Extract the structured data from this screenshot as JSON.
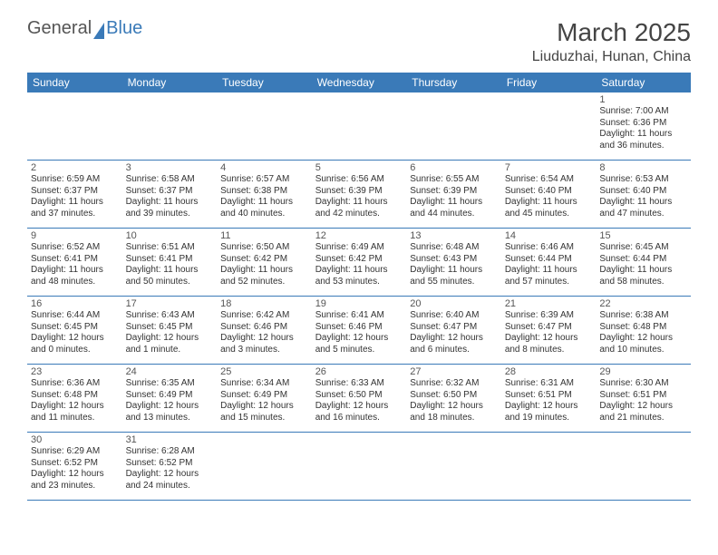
{
  "logo": {
    "general": "General",
    "blue": "Blue"
  },
  "title": {
    "month": "March 2025",
    "location": "Liuduzhai, Hunan, China"
  },
  "colors": {
    "header_bg": "#3a7ab8",
    "header_text": "#ffffff",
    "border": "#3a7ab8",
    "text": "#333333",
    "title_text": "#444444"
  },
  "day_headers": [
    "Sunday",
    "Monday",
    "Tuesday",
    "Wednesday",
    "Thursday",
    "Friday",
    "Saturday"
  ],
  "weeks": [
    [
      null,
      null,
      null,
      null,
      null,
      null,
      {
        "n": "1",
        "sr": "Sunrise: 7:00 AM",
        "ss": "Sunset: 6:36 PM",
        "dl1": "Daylight: 11 hours",
        "dl2": "and 36 minutes."
      }
    ],
    [
      {
        "n": "2",
        "sr": "Sunrise: 6:59 AM",
        "ss": "Sunset: 6:37 PM",
        "dl1": "Daylight: 11 hours",
        "dl2": "and 37 minutes."
      },
      {
        "n": "3",
        "sr": "Sunrise: 6:58 AM",
        "ss": "Sunset: 6:37 PM",
        "dl1": "Daylight: 11 hours",
        "dl2": "and 39 minutes."
      },
      {
        "n": "4",
        "sr": "Sunrise: 6:57 AM",
        "ss": "Sunset: 6:38 PM",
        "dl1": "Daylight: 11 hours",
        "dl2": "and 40 minutes."
      },
      {
        "n": "5",
        "sr": "Sunrise: 6:56 AM",
        "ss": "Sunset: 6:39 PM",
        "dl1": "Daylight: 11 hours",
        "dl2": "and 42 minutes."
      },
      {
        "n": "6",
        "sr": "Sunrise: 6:55 AM",
        "ss": "Sunset: 6:39 PM",
        "dl1": "Daylight: 11 hours",
        "dl2": "and 44 minutes."
      },
      {
        "n": "7",
        "sr": "Sunrise: 6:54 AM",
        "ss": "Sunset: 6:40 PM",
        "dl1": "Daylight: 11 hours",
        "dl2": "and 45 minutes."
      },
      {
        "n": "8",
        "sr": "Sunrise: 6:53 AM",
        "ss": "Sunset: 6:40 PM",
        "dl1": "Daylight: 11 hours",
        "dl2": "and 47 minutes."
      }
    ],
    [
      {
        "n": "9",
        "sr": "Sunrise: 6:52 AM",
        "ss": "Sunset: 6:41 PM",
        "dl1": "Daylight: 11 hours",
        "dl2": "and 48 minutes."
      },
      {
        "n": "10",
        "sr": "Sunrise: 6:51 AM",
        "ss": "Sunset: 6:41 PM",
        "dl1": "Daylight: 11 hours",
        "dl2": "and 50 minutes."
      },
      {
        "n": "11",
        "sr": "Sunrise: 6:50 AM",
        "ss": "Sunset: 6:42 PM",
        "dl1": "Daylight: 11 hours",
        "dl2": "and 52 minutes."
      },
      {
        "n": "12",
        "sr": "Sunrise: 6:49 AM",
        "ss": "Sunset: 6:42 PM",
        "dl1": "Daylight: 11 hours",
        "dl2": "and 53 minutes."
      },
      {
        "n": "13",
        "sr": "Sunrise: 6:48 AM",
        "ss": "Sunset: 6:43 PM",
        "dl1": "Daylight: 11 hours",
        "dl2": "and 55 minutes."
      },
      {
        "n": "14",
        "sr": "Sunrise: 6:46 AM",
        "ss": "Sunset: 6:44 PM",
        "dl1": "Daylight: 11 hours",
        "dl2": "and 57 minutes."
      },
      {
        "n": "15",
        "sr": "Sunrise: 6:45 AM",
        "ss": "Sunset: 6:44 PM",
        "dl1": "Daylight: 11 hours",
        "dl2": "and 58 minutes."
      }
    ],
    [
      {
        "n": "16",
        "sr": "Sunrise: 6:44 AM",
        "ss": "Sunset: 6:45 PM",
        "dl1": "Daylight: 12 hours",
        "dl2": "and 0 minutes."
      },
      {
        "n": "17",
        "sr": "Sunrise: 6:43 AM",
        "ss": "Sunset: 6:45 PM",
        "dl1": "Daylight: 12 hours",
        "dl2": "and 1 minute."
      },
      {
        "n": "18",
        "sr": "Sunrise: 6:42 AM",
        "ss": "Sunset: 6:46 PM",
        "dl1": "Daylight: 12 hours",
        "dl2": "and 3 minutes."
      },
      {
        "n": "19",
        "sr": "Sunrise: 6:41 AM",
        "ss": "Sunset: 6:46 PM",
        "dl1": "Daylight: 12 hours",
        "dl2": "and 5 minutes."
      },
      {
        "n": "20",
        "sr": "Sunrise: 6:40 AM",
        "ss": "Sunset: 6:47 PM",
        "dl1": "Daylight: 12 hours",
        "dl2": "and 6 minutes."
      },
      {
        "n": "21",
        "sr": "Sunrise: 6:39 AM",
        "ss": "Sunset: 6:47 PM",
        "dl1": "Daylight: 12 hours",
        "dl2": "and 8 minutes."
      },
      {
        "n": "22",
        "sr": "Sunrise: 6:38 AM",
        "ss": "Sunset: 6:48 PM",
        "dl1": "Daylight: 12 hours",
        "dl2": "and 10 minutes."
      }
    ],
    [
      {
        "n": "23",
        "sr": "Sunrise: 6:36 AM",
        "ss": "Sunset: 6:48 PM",
        "dl1": "Daylight: 12 hours",
        "dl2": "and 11 minutes."
      },
      {
        "n": "24",
        "sr": "Sunrise: 6:35 AM",
        "ss": "Sunset: 6:49 PM",
        "dl1": "Daylight: 12 hours",
        "dl2": "and 13 minutes."
      },
      {
        "n": "25",
        "sr": "Sunrise: 6:34 AM",
        "ss": "Sunset: 6:49 PM",
        "dl1": "Daylight: 12 hours",
        "dl2": "and 15 minutes."
      },
      {
        "n": "26",
        "sr": "Sunrise: 6:33 AM",
        "ss": "Sunset: 6:50 PM",
        "dl1": "Daylight: 12 hours",
        "dl2": "and 16 minutes."
      },
      {
        "n": "27",
        "sr": "Sunrise: 6:32 AM",
        "ss": "Sunset: 6:50 PM",
        "dl1": "Daylight: 12 hours",
        "dl2": "and 18 minutes."
      },
      {
        "n": "28",
        "sr": "Sunrise: 6:31 AM",
        "ss": "Sunset: 6:51 PM",
        "dl1": "Daylight: 12 hours",
        "dl2": "and 19 minutes."
      },
      {
        "n": "29",
        "sr": "Sunrise: 6:30 AM",
        "ss": "Sunset: 6:51 PM",
        "dl1": "Daylight: 12 hours",
        "dl2": "and 21 minutes."
      }
    ],
    [
      {
        "n": "30",
        "sr": "Sunrise: 6:29 AM",
        "ss": "Sunset: 6:52 PM",
        "dl1": "Daylight: 12 hours",
        "dl2": "and 23 minutes."
      },
      {
        "n": "31",
        "sr": "Sunrise: 6:28 AM",
        "ss": "Sunset: 6:52 PM",
        "dl1": "Daylight: 12 hours",
        "dl2": "and 24 minutes."
      },
      null,
      null,
      null,
      null,
      null
    ]
  ]
}
